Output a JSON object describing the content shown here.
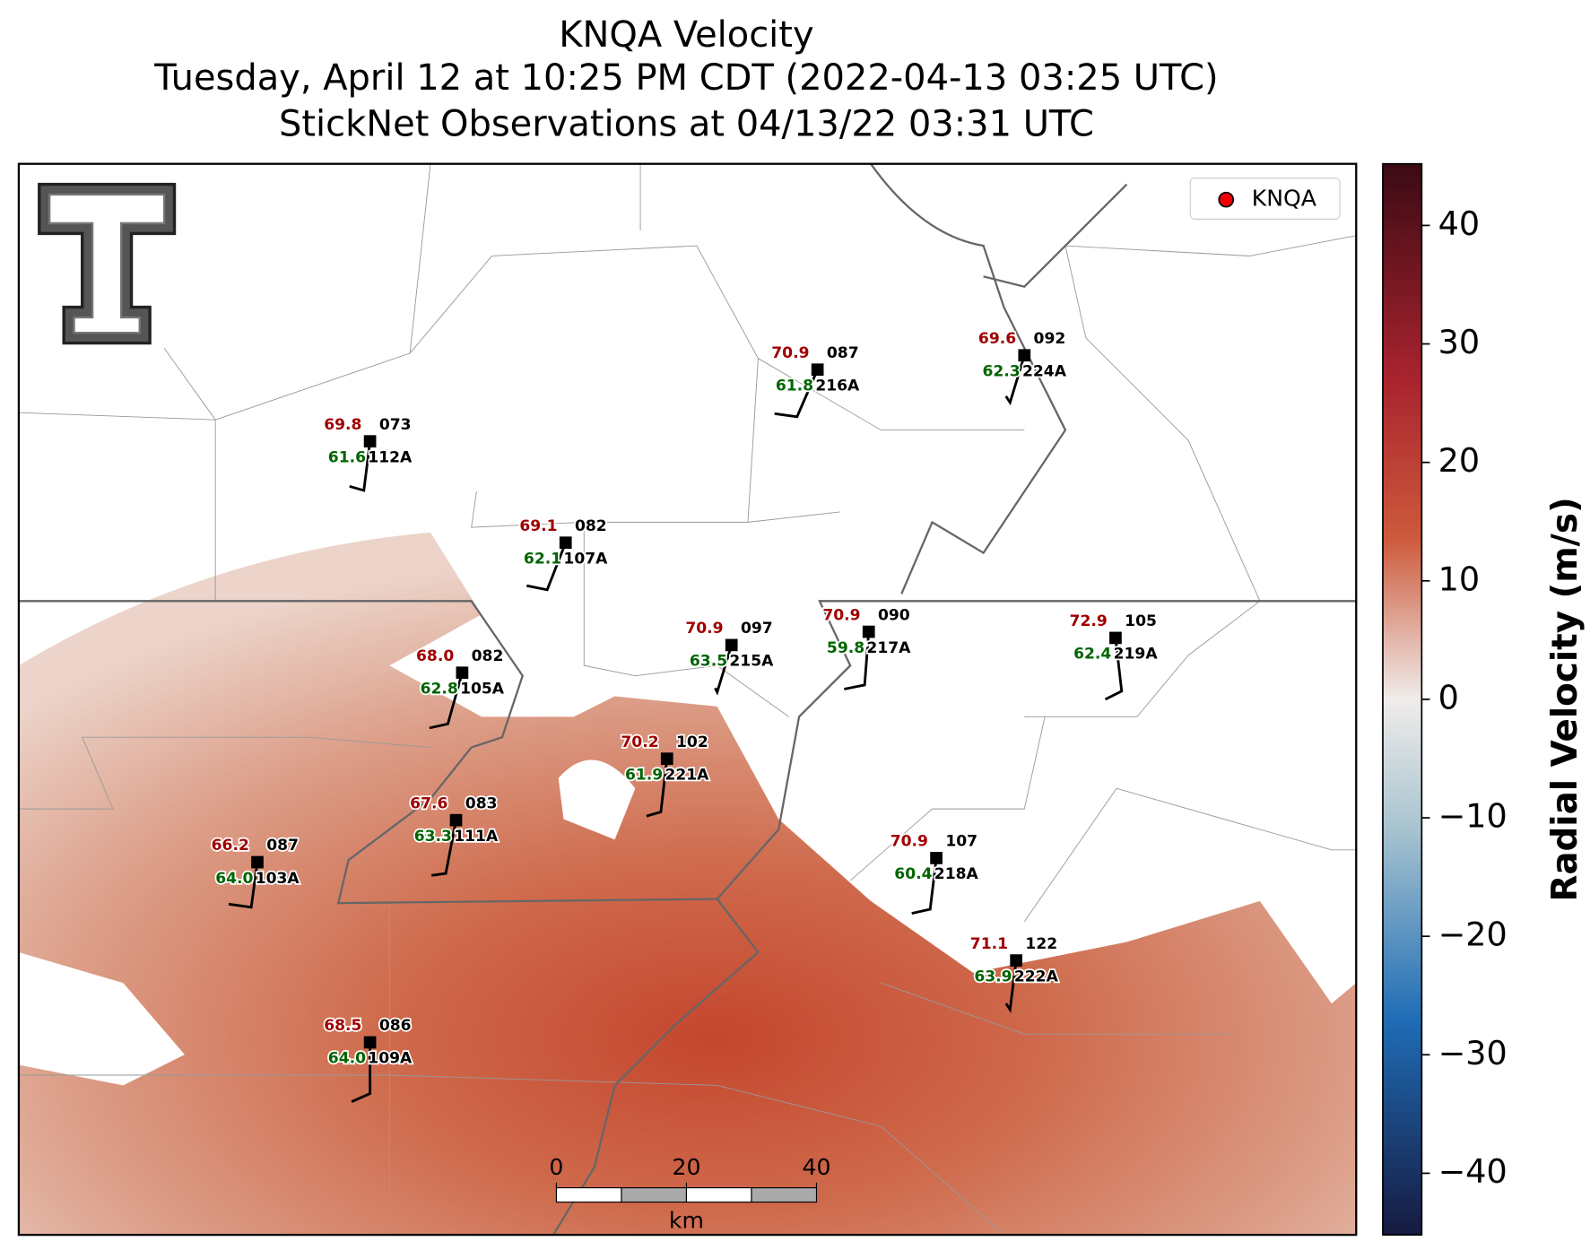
{
  "header": {
    "title_lines": [
      "KNQA Velocity",
      "Tuesday, April 12 at 10:25 PM CDT (2022-04-13 03:25 UTC)",
      "StickNet Observations at 04/13/22 03:31 UTC"
    ]
  },
  "legend": {
    "label": "KNQA"
  },
  "colorbar": {
    "label": "Radial Velocity (m/s)",
    "lim": [
      -45.2,
      45.2
    ],
    "ticks": [
      {
        "value": -40,
        "label": "−40"
      },
      {
        "value": -30,
        "label": "−30"
      },
      {
        "value": -20,
        "label": "−20"
      },
      {
        "value": -10,
        "label": "−10"
      },
      0,
      10,
      20,
      30,
      40
    ]
  },
  "scale_bar": {
    "unit": "km",
    "ticks": [
      0,
      20,
      40
    ]
  },
  "stations": [
    {
      "temp": "69.8",
      "dewpoint": "61.6",
      "code": "073",
      "id": "112A"
    },
    {
      "temp": "69.1",
      "dewpoint": "62.1",
      "code": "082",
      "id": "107A"
    },
    {
      "temp": "70.9",
      "dewpoint": "61.8",
      "code": "087",
      "id": "216A"
    },
    {
      "temp": "69.6",
      "dewpoint": "62.3",
      "code": "092",
      "id": "224A"
    },
    {
      "temp": "68.0",
      "dewpoint": "62.8",
      "code": "082",
      "id": "105A"
    },
    {
      "temp": "70.9",
      "dewpoint": "63.5",
      "code": "097",
      "id": "215A"
    },
    {
      "temp": "70.9",
      "dewpoint": "59.8",
      "code": "090",
      "id": "217A"
    },
    {
      "temp": "72.9",
      "dewpoint": "62.4",
      "code": "105",
      "id": "219A"
    },
    {
      "temp": "70.2",
      "dewpoint": "61.9",
      "code": "102",
      "id": "221A"
    },
    {
      "temp": "67.6",
      "dewpoint": "63.3",
      "code": "083",
      "id": "111A"
    },
    {
      "temp": "66.2",
      "dewpoint": "64.0",
      "code": "087",
      "id": "103A"
    },
    {
      "temp": "70.9",
      "dewpoint": "60.4",
      "code": "107",
      "id": "218A"
    },
    {
      "temp": "71.1",
      "dewpoint": "63.9",
      "code": "122",
      "id": "222A"
    },
    {
      "temp": "68.5",
      "dewpoint": "64.0",
      "code": "086",
      "id": "109A"
    }
  ]
}
